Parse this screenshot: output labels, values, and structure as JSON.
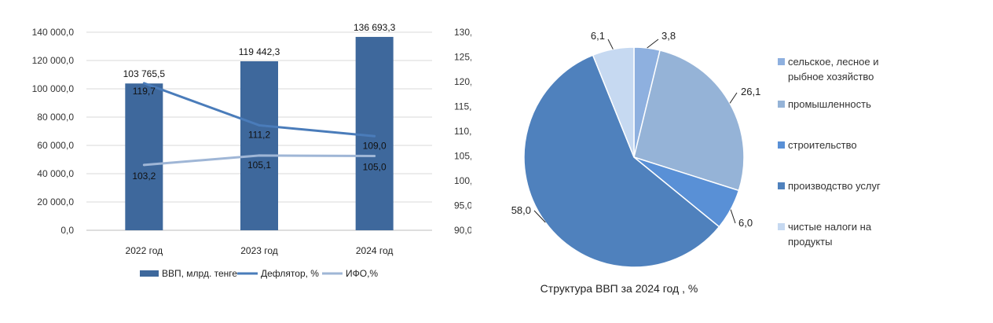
{
  "chart_data": [
    {
      "type": "bar",
      "categories": [
        "2022 год",
        "2023 год",
        "2024 год"
      ],
      "title": "",
      "xlabel": "",
      "ylabel": "",
      "ylim": [
        0,
        140000
      ],
      "y2lim": [
        90,
        130
      ],
      "y_ticks": [
        0,
        20000,
        40000,
        60000,
        80000,
        100000,
        120000,
        140000
      ],
      "y_tick_labels": [
        "0,0",
        "20 000,0",
        "40 000,0",
        "60 000,0",
        "80 000,0",
        "100 000,0",
        "120 000,0",
        "140 000,0"
      ],
      "y2_ticks": [
        90,
        95,
        100,
        105,
        110,
        115,
        120,
        125,
        130
      ],
      "y2_tick_labels": [
        "90,0",
        "95,0",
        "100,0",
        "105,0",
        "110,0",
        "115,0",
        "120,0",
        "125,0",
        "130,0"
      ],
      "grid": true,
      "legend_position": "bottom",
      "series": [
        {
          "name": "ВВП, млрд. тенге",
          "kind": "bar",
          "axis": "left",
          "color": "#3e689c",
          "values": [
            103765.5,
            119442.3,
            136693.3
          ],
          "labels": [
            "103 765,5",
            "119 442,3",
            "136 693,3"
          ]
        },
        {
          "name": "Дефлятор, %",
          "kind": "line",
          "axis": "right",
          "color": "#4a7cba",
          "values": [
            119.7,
            111.2,
            109.0
          ],
          "labels": [
            "119,7",
            "111,2",
            "109,0"
          ]
        },
        {
          "name": "ИФО,%",
          "kind": "line",
          "axis": "right",
          "color": "#9fb6d6",
          "values": [
            103.2,
            105.1,
            105.0
          ],
          "labels": [
            "103,2",
            "105,1",
            "105,0"
          ]
        }
      ]
    },
    {
      "type": "pie",
      "title": "Структура ВВП за 2024 год , %",
      "legend_position": "right",
      "slices": [
        {
          "name": "сельское, лесное и рыбное хозяйство",
          "name_lines": [
            "сельское, лесное и",
            "рыбное хозяйство"
          ],
          "value": 3.8,
          "label": "3,8",
          "color": "#8eb0df"
        },
        {
          "name": "промышленность",
          "name_lines": [
            "промышленность"
          ],
          "value": 26.1,
          "label": "26,1",
          "color": "#95b3d7"
        },
        {
          "name": "строительство",
          "name_lines": [
            "строительство"
          ],
          "value": 6.0,
          "label": "6,0",
          "color": "#5990d6"
        },
        {
          "name": "производство услуг",
          "name_lines": [
            "производство услуг"
          ],
          "value": 58.0,
          "label": "58,0",
          "color": "#4f81bd"
        },
        {
          "name": "чистые налоги на продукты",
          "name_lines": [
            "чистые налоги на",
            "продукты"
          ],
          "value": 6.1,
          "label": "6,1",
          "color": "#c6d9f1"
        }
      ]
    }
  ]
}
